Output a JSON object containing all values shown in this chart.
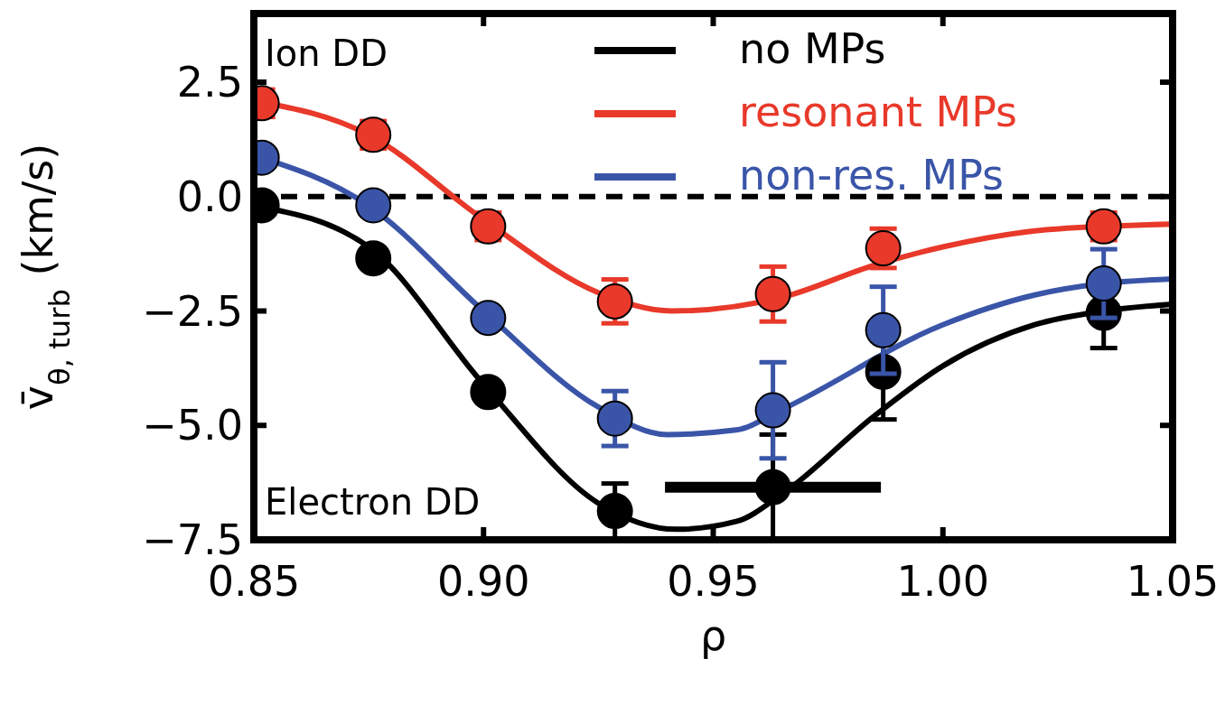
{
  "chart_data": {
    "type": "line",
    "xlabel": "ρ",
    "ylabel": "v̄$_{θ, turb}$ (km/s)",
    "xlim": [
      0.85,
      1.05
    ],
    "xticks": [
      {
        "value": 0.85,
        "label": "0.85"
      },
      {
        "value": 0.9,
        "label": "0.90"
      },
      {
        "value": 0.95,
        "label": "0.95"
      },
      {
        "value": 1.0,
        "label": "1.00"
      },
      {
        "value": 1.05,
        "label": "1.05"
      }
    ],
    "ylim": [
      -7.5,
      4
    ],
    "yticks": [
      {
        "value": -7.5,
        "label": "−7.5"
      },
      {
        "value": -5,
        "label": "−5.0"
      },
      {
        "value": -2.5,
        "label": "−2.5"
      },
      {
        "value": 0,
        "label": "0.0"
      },
      {
        "value": 2.5,
        "label": "2.5"
      }
    ],
    "grid": false,
    "legend": "top right",
    "line_style": "solid",
    "ref_lines": [
      {
        "axis": "y",
        "value": 0,
        "color": "#000000",
        "line_style": "dashed"
      }
    ],
    "annotations": [
      "Ion DD",
      "Electron DD"
    ],
    "series": [
      {
        "name": "no MPs",
        "color": "#000000",
        "marker": "none",
        "x": [
          0.85,
          0.875,
          0.9,
          0.925,
          0.942,
          0.955,
          0.965,
          0.985,
          1.0,
          1.02,
          1.035,
          1.05
        ],
        "values": [
          -0.2,
          -1.1,
          -4.1,
          -6.7,
          -7.27,
          -7.1,
          -6.5,
          -4.8,
          -3.7,
          -2.8,
          -2.5,
          -2.35
        ]
      },
      {
        "name": "resonant MPs",
        "color": "#e8392a",
        "marker": "none",
        "x": [
          0.85,
          0.875,
          0.9,
          0.925,
          0.941,
          0.965,
          0.985,
          1.0,
          1.02,
          1.035,
          1.05
        ],
        "values": [
          2.1,
          1.35,
          -0.5,
          -2.1,
          -2.5,
          -2.2,
          -1.5,
          -1.1,
          -0.75,
          -0.65,
          -0.6
        ]
      },
      {
        "name": "non-res. MPs",
        "color": "#3a55a8",
        "marker": "none",
        "x": [
          0.85,
          0.875,
          0.9,
          0.925,
          0.94,
          0.955,
          0.965,
          1.0,
          1.02,
          1.035,
          1.05
        ],
        "values": [
          0.9,
          -0.2,
          -2.5,
          -4.6,
          -5.2,
          -5.1,
          -4.65,
          -2.8,
          -2.15,
          -1.9,
          -1.8
        ]
      },
      {
        "type": "scatter",
        "color": "#000000",
        "marker": "circle",
        "x": [
          0.8517,
          0.876,
          0.901,
          0.9286,
          0.963,
          0.987,
          1.035
        ],
        "values": [
          -0.19,
          -1.35,
          -4.27,
          -6.87,
          -6.35,
          -3.83,
          -2.54
        ],
        "errors": [
          0.15,
          0.15,
          0.2,
          0.6,
          1.15,
          1.04,
          0.77
        ],
        "xerrors": [
          null,
          null,
          null,
          null,
          0.0235,
          null,
          null
        ]
      },
      {
        "type": "scatter",
        "color": "#3a55a8",
        "marker": "circle",
        "x": [
          0.8517,
          0.876,
          0.901,
          0.9286,
          0.963,
          0.987,
          1.035
        ],
        "values": [
          0.85,
          -0.19,
          -2.65,
          -4.85,
          -4.67,
          -2.92,
          -1.9
        ],
        "errors": [
          0.15,
          0.15,
          0.15,
          0.6,
          1.05,
          0.95,
          0.75
        ]
      },
      {
        "type": "scatter",
        "color": "#e8392a",
        "marker": "circle",
        "x": [
          0.8517,
          0.876,
          0.901,
          0.9286,
          0.963,
          0.987,
          1.035
        ],
        "values": [
          2.04,
          1.35,
          -0.65,
          -2.29,
          -2.13,
          -1.13,
          -0.65
        ],
        "errors": [
          0.3,
          0.3,
          0.3,
          0.48,
          0.6,
          0.43,
          0.3
        ]
      }
    ]
  }
}
